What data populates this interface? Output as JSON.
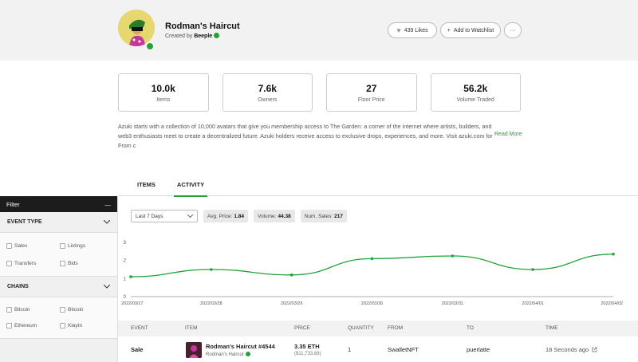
{
  "collection": {
    "title": "Rodman's Haircut",
    "created_by_prefix": "Created by",
    "creator": "Beeple",
    "likes": "439 Likes",
    "watchlist": "Add to Watchlist",
    "more": "···"
  },
  "stats": [
    {
      "value": "10.0k",
      "label": "Items"
    },
    {
      "value": "7.6k",
      "label": "Owners"
    },
    {
      "value": "27",
      "label": "Floor Price"
    },
    {
      "value": "56.2k",
      "label": "Volume Traded"
    }
  ],
  "description": "Azuki starts with a collection of 10,000 avatars that give you membership access to The Garden: a corner of the internet where artists, builders, and web3 enthusiasts meet to create a decentralized future. Azuki holders receive access to exclusive drops, experiences, and more. Visit azuki.com for From c",
  "read_more": "Read More",
  "tabs": {
    "items": "ITEMS",
    "activity": "ACTIVITY"
  },
  "filter": {
    "title": "Filter",
    "collapse": "—",
    "event_type": {
      "title": "EVENT TYPE",
      "options": [
        "Sales",
        "Listings",
        "Transfers",
        "Bids"
      ]
    },
    "chains": {
      "title": "CHAINS",
      "options": [
        "Bitcoin",
        "Bitcoin",
        "Ethereum",
        "Klaytn"
      ]
    }
  },
  "controls": {
    "range": "Last 7 Days",
    "avg_label": "Avg. Price:",
    "avg_value": "1.84",
    "vol_label": "Volume:",
    "vol_value": "44.38",
    "sales_label": "Num. Sales:",
    "sales_value": "217"
  },
  "chart_data": {
    "type": "line",
    "x": [
      "2022/03/27",
      "2022/03/28",
      "2022/03/29",
      "2022/03/30",
      "2022/03/31",
      "2022/04/01",
      "2022/04/02"
    ],
    "y_ticks": [
      "0",
      "1",
      "2",
      "3"
    ],
    "ylim": [
      0,
      3
    ],
    "series": [
      {
        "values": [
          1.1,
          1.5,
          1.2,
          2.1,
          2.25,
          1.5,
          2.35
        ]
      }
    ],
    "color": "#21a33a"
  },
  "table": {
    "headers": [
      "EVENT",
      "ITEM",
      "PRICE",
      "QUANTITY",
      "FROM",
      "TO",
      "TIME"
    ],
    "rows": [
      {
        "event": "Sale",
        "item_name": "Rodman's Haircut #4544",
        "item_collection": "Rodman's Haircut",
        "price_eth": "3.35 ETH",
        "price_usd": "($11,733.68)",
        "quantity": "1",
        "from": "SwalletNFT",
        "to": "puerlatte",
        "time": "18 Seconds ago"
      }
    ]
  }
}
